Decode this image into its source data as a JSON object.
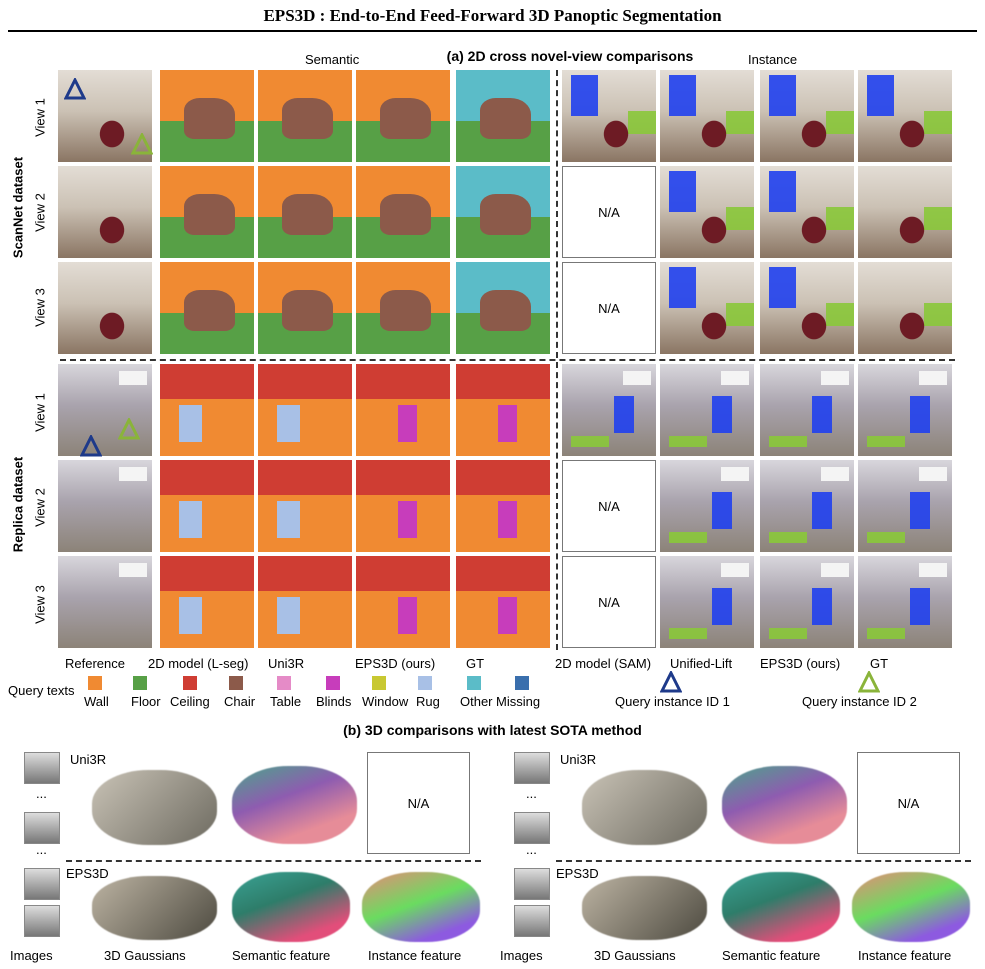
{
  "title": "EPS3D : End-to-End Feed-Forward 3D Panoptic Segmentation",
  "section_a": "(a) 2D cross novel-view comparisons",
  "semantic_label": "Semantic",
  "instance_label": "Instance",
  "datasets": [
    "ScanNet dataset",
    "Replica dataset"
  ],
  "views": [
    "View 1",
    "View 2",
    "View 3"
  ],
  "columns": [
    "Reference",
    "2D model (L-seg)",
    "Uni3R",
    "EPS3D (ours)",
    "GT",
    "2D model (SAM)",
    "Unified-Lift",
    "EPS3D (ours)",
    "GT"
  ],
  "na": "N/A",
  "legend_label": "Query texts",
  "legend": [
    {
      "name": "Wall",
      "color": "#f08a32"
    },
    {
      "name": "Floor",
      "color": "#57a046"
    },
    {
      "name": "Ceiling",
      "color": "#cf3d33"
    },
    {
      "name": "Chair",
      "color": "#8c5a4a"
    },
    {
      "name": "Table",
      "color": "#e58bc7"
    },
    {
      "name": "Blinds",
      "color": "#c73dbb"
    },
    {
      "name": "Window",
      "color": "#c8c832"
    },
    {
      "name": "Rug",
      "color": "#a8c0e6"
    },
    {
      "name": "Other",
      "color": "#5bbcc8"
    },
    {
      "name": "Missing",
      "color": "#3a6fad"
    }
  ],
  "query_instance_1": "Query instance ID 1",
  "query_instance_2": "Query instance ID 2",
  "query_colors": {
    "id1": "#1e3a8a",
    "id2": "#8ab43a"
  },
  "section_b": "(b) 3D  comparisons with latest SOTA method",
  "b_methods": [
    "Uni3R",
    "EPS3D"
  ],
  "b_columns": [
    "Images",
    "3D Gaussians",
    "Semantic feature",
    "Instance feature"
  ],
  "ellipsis": "..."
}
